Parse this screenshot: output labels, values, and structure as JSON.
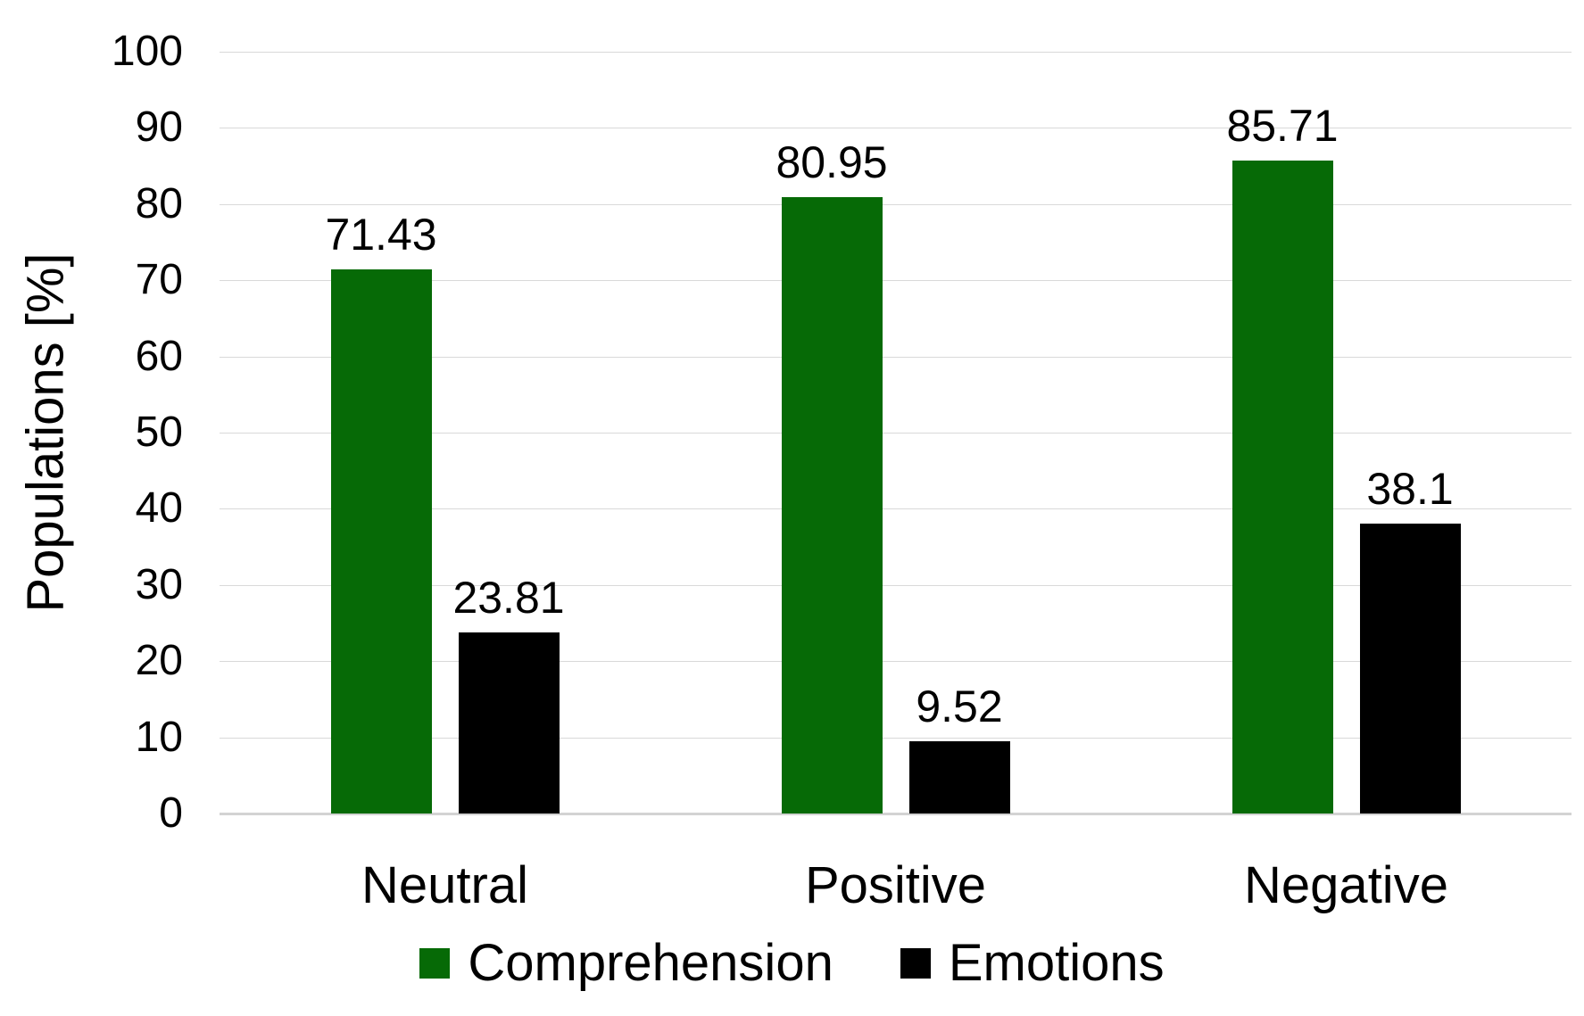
{
  "chart_data": {
    "type": "bar",
    "title": "",
    "categories": [
      "Neutral",
      "Positive",
      "Negative"
    ],
    "series": [
      {
        "name": "Comprehension",
        "color": "#066a06",
        "values": [
          71.43,
          80.95,
          85.71
        ]
      },
      {
        "name": "Emotions",
        "color": "#000000",
        "values": [
          23.81,
          9.52,
          38.1
        ]
      }
    ],
    "data_labels_shown": true,
    "xlabel": "",
    "ylabel": "Populations [%]",
    "ylim": [
      0,
      100
    ],
    "yticks": [
      0,
      10,
      20,
      30,
      40,
      50,
      60,
      70,
      80,
      90,
      100
    ],
    "grid": "horizontal",
    "gridline_color": "#d9d9d9",
    "axis_line_color": "#d3d3d3",
    "legend_position": "bottom",
    "background_color": "#ffffff",
    "text_color": "#000000"
  }
}
